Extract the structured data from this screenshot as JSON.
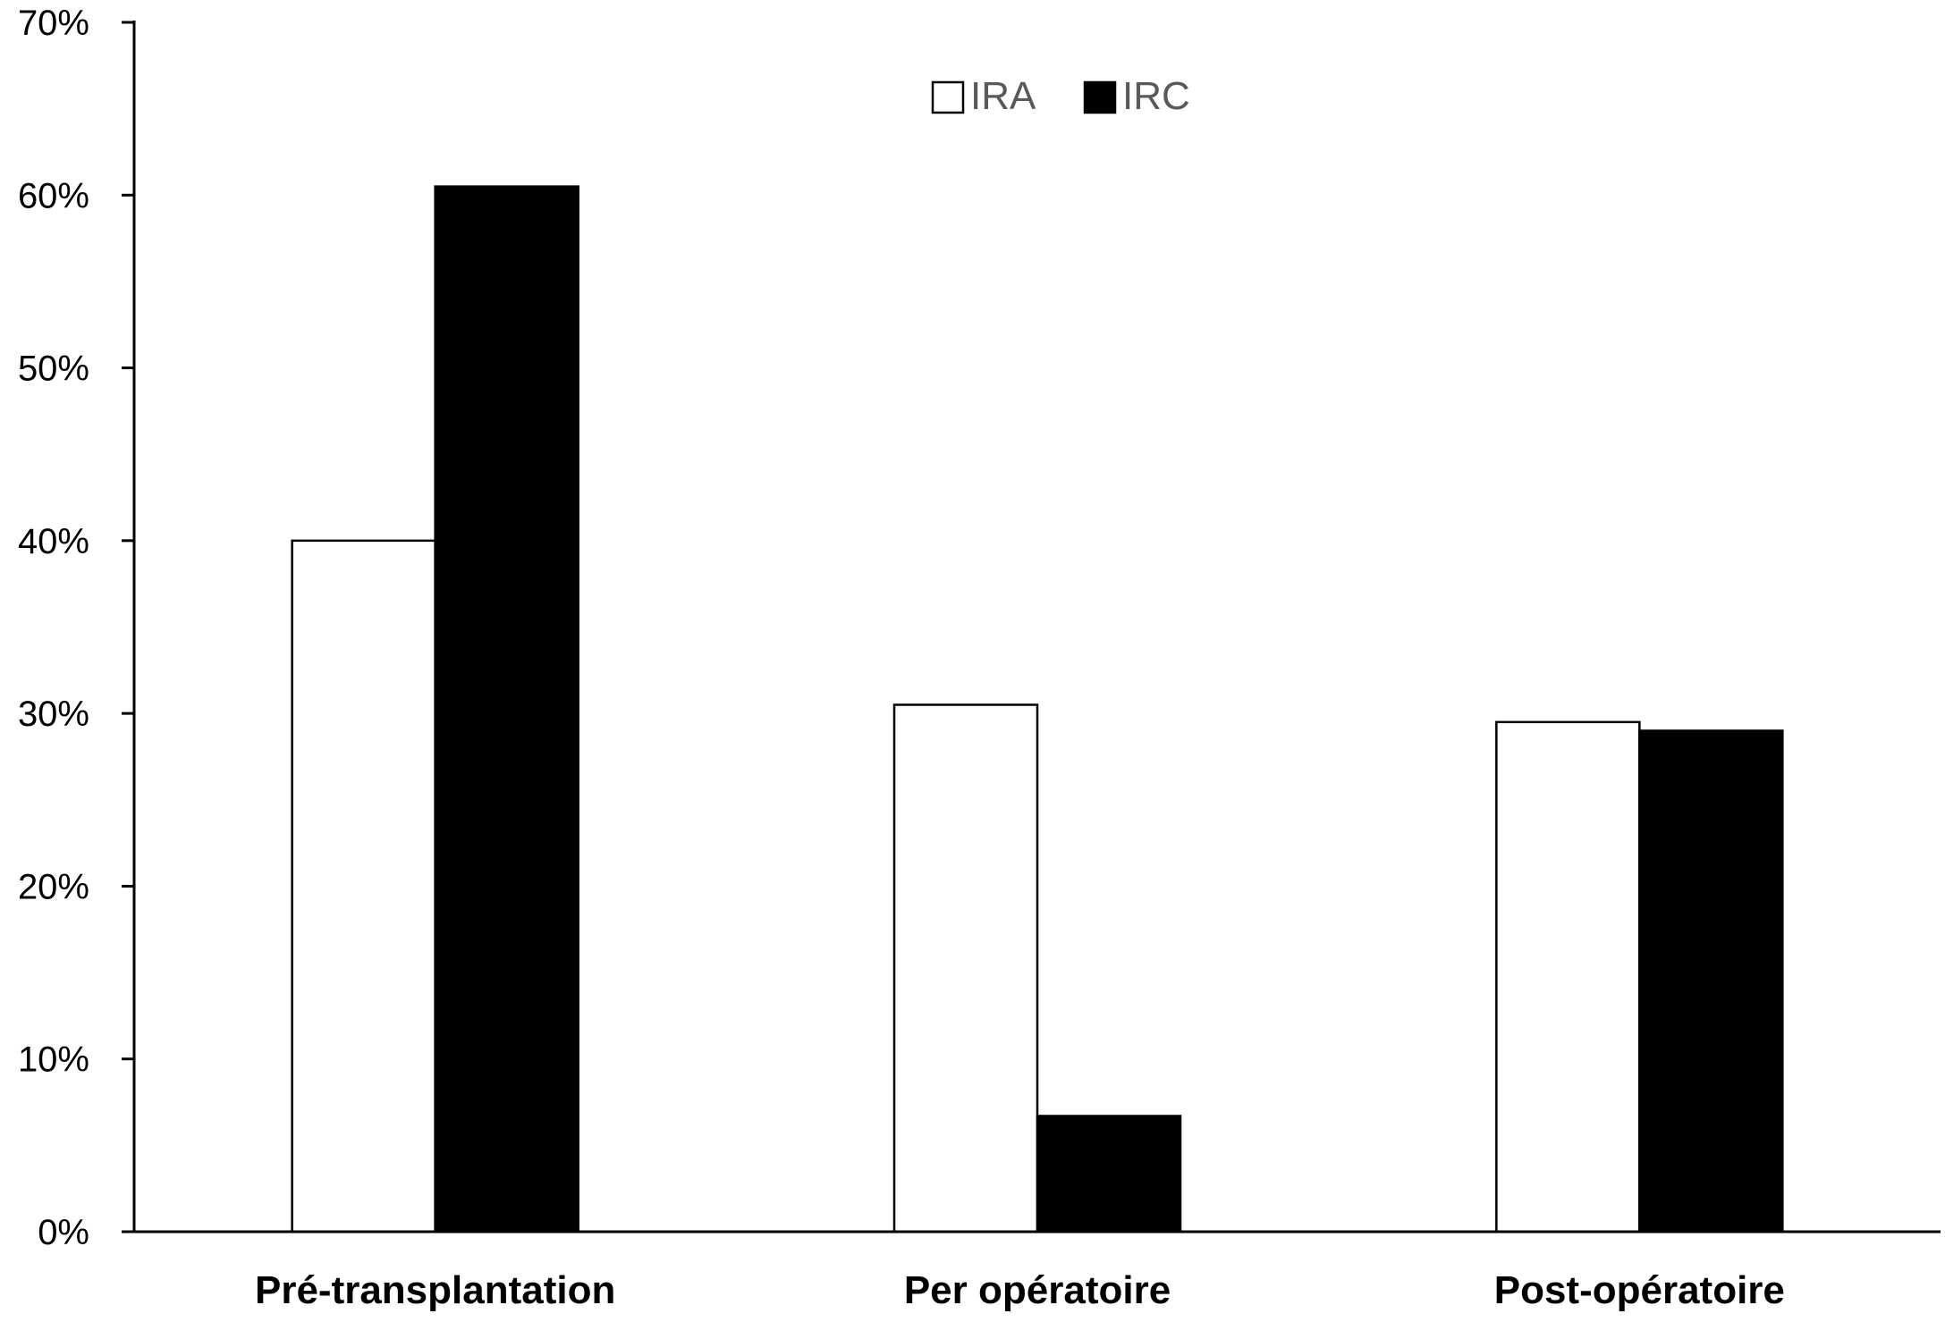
{
  "chart_data": {
    "type": "bar",
    "title": "",
    "xlabel": "",
    "ylabel": "",
    "categories": [
      "Pré-transplantation",
      "Per opératoire",
      "Post-opératoire"
    ],
    "series": [
      {
        "name": "IRA",
        "values": [
          0.4,
          0.305,
          0.295
        ],
        "color": "#ffffff",
        "stroke": "#000000"
      },
      {
        "name": "IRC",
        "values": [
          0.605,
          0.067,
          0.29
        ],
        "color": "#000000",
        "stroke": "#000000"
      }
    ],
    "ylim": [
      0,
      0.7
    ],
    "yticks": [
      0,
      0.1,
      0.2,
      0.3,
      0.4,
      0.5,
      0.6,
      0.7
    ],
    "ytick_labels": [
      "0%",
      "10%",
      "20%",
      "30%",
      "40%",
      "50%",
      "60%",
      "70%"
    ],
    "grid": false,
    "legend": {
      "position": "top-center",
      "entries": [
        "IRA",
        "IRC"
      ]
    }
  }
}
